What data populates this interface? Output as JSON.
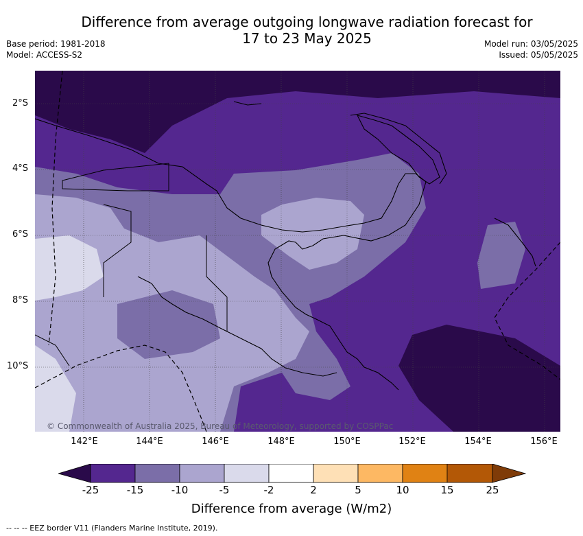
{
  "title_line1": "Difference from average outgoing longwave radiation forecast for",
  "title_line2": "17 to 23 May 2025",
  "base_period": "Base period: 1981-2018",
  "model": "Model: ACCESS-S2",
  "model_run": "Model run: 03/05/2025",
  "issued": "Issued: 05/05/2025",
  "copyright": "© Commonwealth of Australia 2025, Bureau of Meteorology, supported by COSPPac",
  "lat_labels": [
    "2°S",
    "4°S",
    "6°S",
    "8°S",
    "10°S"
  ],
  "lon_labels": [
    "142°E",
    "144°E",
    "146°E",
    "148°E",
    "150°E",
    "152°E",
    "154°E",
    "156°E"
  ],
  "colorbar": {
    "ticks": [
      "-25",
      "-15",
      "-10",
      "-5",
      "-2",
      "2",
      "5",
      "10",
      "15",
      "25"
    ],
    "colors": [
      "#2a0a4a",
      "#54278f",
      "#7b6ea8",
      "#aba5cf",
      "#dadaeb",
      "#ffffff",
      "#fee0b6",
      "#fdb863",
      "#e08214",
      "#b35806",
      "#7f3b08"
    ],
    "label": "Difference from average (W/m2)"
  },
  "footnote": "--  --  -- EEZ border V11 (Flanders Marine Institute, 2019)."
}
